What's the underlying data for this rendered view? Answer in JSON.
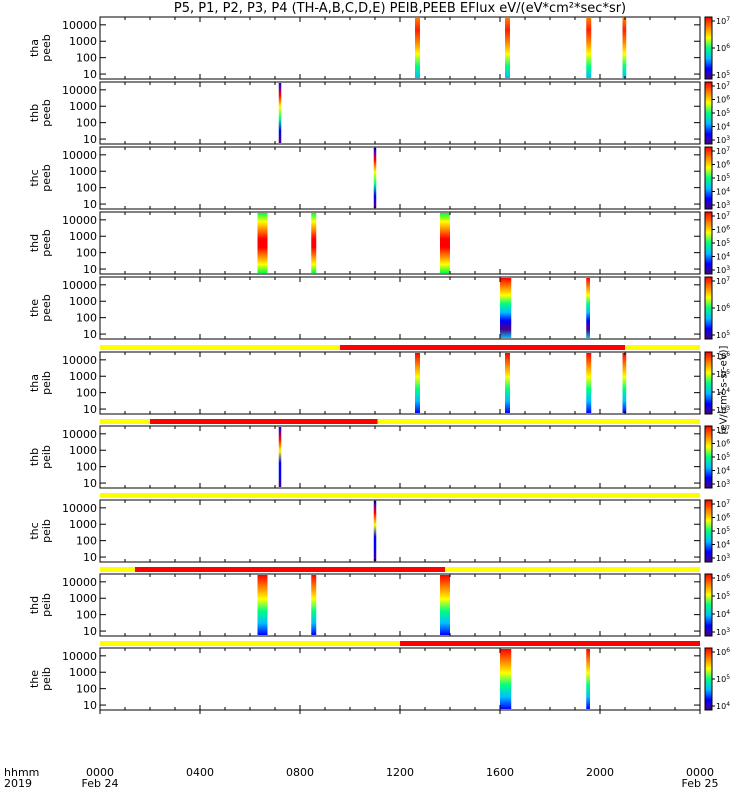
{
  "title": "P5, P1, P2, P3, P4 (TH-A,B,C,D,E) PEIB,PEEB EFlux eV/(eV*cm²*sec*sr)",
  "x_axis": {
    "time_label": "hhmm",
    "year_label": "2019",
    "ticks": [
      "0000",
      "0400",
      "0800",
      "1200",
      "1600",
      "2000",
      "0000"
    ],
    "start_date": "Feb 24",
    "end_date": "Feb 25"
  },
  "colorbar_title": "[eV/(cm²-s-sr-eV)]",
  "chart_data": {
    "type": "heatmap",
    "x_range_hours": [
      0,
      24
    ],
    "y_scale": "log",
    "y_ticks": [
      10,
      100,
      1000,
      10000
    ],
    "y_tick_labels": [
      "10",
      "100",
      "1000",
      "10000"
    ],
    "panels": [
      {
        "id": "tha_peeb",
        "ylabel": [
          "tha",
          "peeb"
        ],
        "colorbar_exp": [
          5,
          7
        ],
        "bursts": [
          [
            12.6,
            12.8,
            "hiE"
          ],
          [
            16.2,
            16.4,
            "hiE"
          ],
          [
            19.45,
            19.65,
            "hiE"
          ],
          [
            20.9,
            21.05,
            "hiE"
          ]
        ],
        "mode_bar": null
      },
      {
        "id": "thb_peeb",
        "ylabel": [
          "thb",
          "peeb"
        ],
        "colorbar_exp": [
          3,
          7
        ],
        "bursts": [
          [
            7.15,
            7.25,
            "spike"
          ]
        ],
        "mode_bar": null
      },
      {
        "id": "thc_peeb",
        "ylabel": [
          "thc",
          "peeb"
        ],
        "colorbar_exp": [
          3,
          7
        ],
        "bursts": [
          [
            10.95,
            11.05,
            "spike"
          ]
        ],
        "mode_bar": null
      },
      {
        "id": "thd_peeb",
        "ylabel": [
          "thd",
          "peeb"
        ],
        "colorbar_exp": [
          3,
          7
        ],
        "bursts": [
          [
            6.3,
            6.7,
            "warm"
          ],
          [
            8.45,
            8.65,
            "warm"
          ],
          [
            13.6,
            14.0,
            "warm"
          ]
        ],
        "mode_bar": null
      },
      {
        "id": "the_peeb",
        "ylabel": [
          "the",
          "peeb"
        ],
        "colorbar_exp": [
          5,
          7
        ],
        "bursts": [
          [
            16.0,
            16.45,
            "low"
          ],
          [
            19.45,
            19.6,
            "low"
          ]
        ],
        "mode_bar": null
      },
      {
        "id": "tha_peib",
        "ylabel": [
          "tha",
          "peib"
        ],
        "colorbar_exp": [
          3,
          6
        ],
        "bursts": [
          [
            12.6,
            12.8,
            "ion"
          ],
          [
            16.2,
            16.4,
            "ion"
          ],
          [
            19.45,
            19.65,
            "ion"
          ],
          [
            20.9,
            21.05,
            "ion"
          ]
        ],
        "mode_bar": [
          [
            0,
            9.6,
            "yellow"
          ],
          [
            9.6,
            21.0,
            "red"
          ],
          [
            21.0,
            24,
            "yellow"
          ]
        ]
      },
      {
        "id": "thb_peib",
        "ylabel": [
          "thb",
          "peib"
        ],
        "colorbar_exp": [
          3,
          7
        ],
        "bursts": [
          [
            7.15,
            7.25,
            "ion-spike"
          ]
        ],
        "mode_bar": [
          [
            0,
            2.0,
            "yellow"
          ],
          [
            2.0,
            11.1,
            "red"
          ],
          [
            11.1,
            24,
            "yellow"
          ]
        ]
      },
      {
        "id": "thc_peib",
        "ylabel": [
          "thc",
          "peib"
        ],
        "colorbar_exp": [
          3,
          7
        ],
        "bursts": [
          [
            10.95,
            11.05,
            "ion-spike"
          ]
        ],
        "mode_bar": [
          [
            0,
            2.0,
            "yellow"
          ],
          [
            2.0,
            24,
            "yellow"
          ]
        ]
      },
      {
        "id": "thd_peib",
        "ylabel": [
          "thd",
          "peib"
        ],
        "colorbar_exp": [
          3,
          6
        ],
        "bursts": [
          [
            6.3,
            6.7,
            "ion"
          ],
          [
            8.45,
            8.65,
            "ion"
          ],
          [
            13.6,
            14.0,
            "ion"
          ]
        ],
        "mode_bar": [
          [
            0,
            1.4,
            "yellow"
          ],
          [
            1.4,
            13.8,
            "red"
          ],
          [
            13.8,
            24,
            "yellow"
          ]
        ]
      },
      {
        "id": "the_peib",
        "ylabel": [
          "the",
          "peib"
        ],
        "colorbar_exp": [
          4,
          6
        ],
        "bursts": [
          [
            16.0,
            16.45,
            "ion"
          ],
          [
            19.45,
            19.6,
            "ion"
          ]
        ],
        "mode_bar": [
          [
            0,
            12.0,
            "yellow"
          ],
          [
            12.0,
            24,
            "red"
          ]
        ]
      }
    ]
  },
  "colors": {
    "mode_red": "#ff0000",
    "mode_yellow": "#ffff00",
    "rainbow": [
      "#4b0082",
      "#0000ff",
      "#00bfff",
      "#00ff80",
      "#ffff00",
      "#ff8000",
      "#ff0000"
    ]
  }
}
